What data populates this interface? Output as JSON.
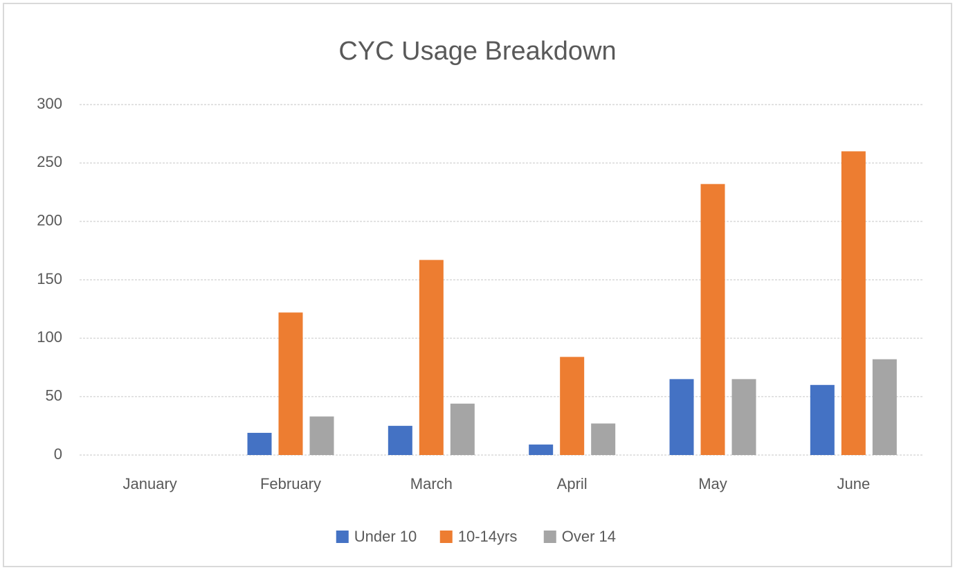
{
  "chart_data": {
    "type": "bar",
    "title": "CYC Usage Breakdown",
    "categories": [
      "January",
      "February",
      "March",
      "April",
      "May",
      "June"
    ],
    "series": [
      {
        "name": "Under 10",
        "color": "#4472c4",
        "values": [
          0,
          19,
          25,
          9,
          65,
          60
        ]
      },
      {
        "name": "10-14yrs",
        "color": "#ed7d31",
        "values": [
          0,
          122,
          167,
          84,
          232,
          260
        ]
      },
      {
        "name": "Over 14",
        "color": "#a5a5a5",
        "values": [
          0,
          33,
          44,
          27,
          65,
          82
        ]
      }
    ],
    "ylim": [
      0,
      300
    ],
    "yticks": [
      0,
      50,
      100,
      150,
      200,
      250,
      300
    ],
    "grid": true,
    "legend": "bottom"
  }
}
